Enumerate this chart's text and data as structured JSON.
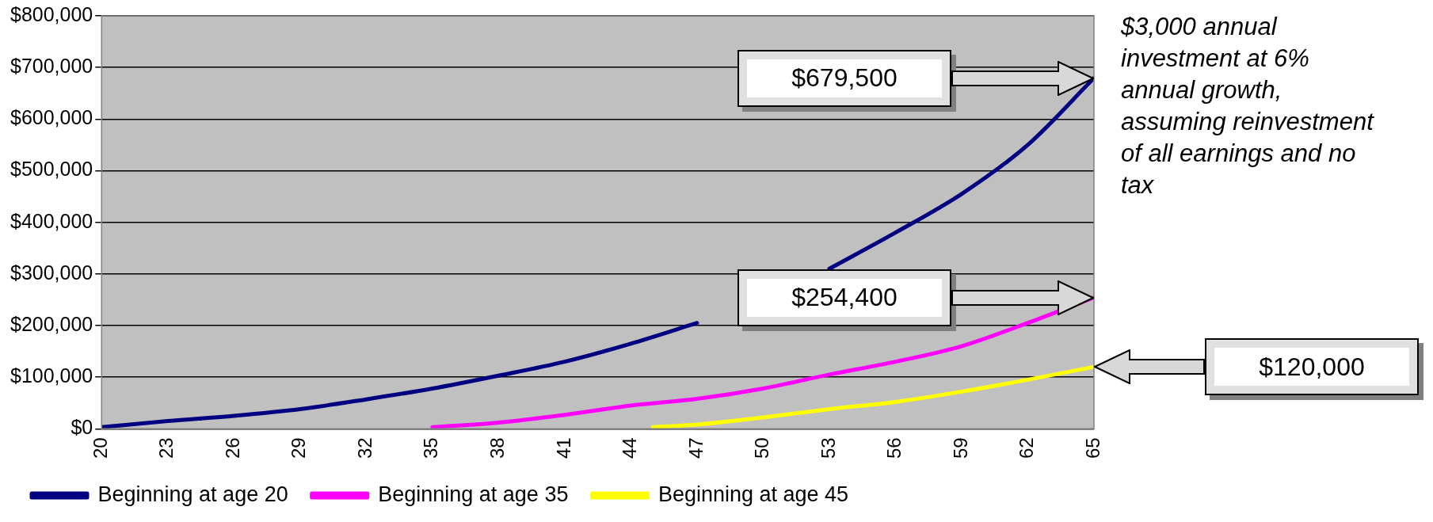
{
  "chart_data": {
    "type": "line",
    "xlim": [
      20,
      65
    ],
    "xticks": [
      20,
      23,
      26,
      29,
      32,
      35,
      38,
      41,
      44,
      47,
      50,
      53,
      56,
      59,
      62,
      65
    ],
    "ylim": [
      0,
      800000
    ],
    "yticks": [
      {
        "value": 0,
        "label": "$0"
      },
      {
        "value": 100000,
        "label": "$100,000"
      },
      {
        "value": 200000,
        "label": "$200,000"
      },
      {
        "value": 300000,
        "label": "$300,000"
      },
      {
        "value": 400000,
        "label": "$400,000"
      },
      {
        "value": 500000,
        "label": "$500,000"
      },
      {
        "value": 600000,
        "label": "$600,000"
      },
      {
        "value": 700000,
        "label": "$700,000"
      },
      {
        "value": 800000,
        "label": "$800,000"
      }
    ],
    "grid": "y",
    "legend": "bottom left",
    "marker": "none",
    "line_style": "solid",
    "series": [
      {
        "name": "Beginning at age 20",
        "color": "#000080",
        "x": [
          20,
          23,
          26,
          29,
          32,
          35,
          38,
          41,
          44,
          47,
          50,
          53,
          56,
          59,
          62,
          65
        ],
        "values": [
          3000,
          15000,
          25000,
          38000,
          57000,
          78000,
          103000,
          130000,
          165000,
          205000,
          null,
          310000,
          380000,
          455000,
          550000,
          679500
        ]
      },
      {
        "name": "Beginning at age 35",
        "color": "#ff00ff",
        "x": [
          35,
          38,
          41,
          44,
          47,
          50,
          53,
          56,
          59,
          62,
          65
        ],
        "values": [
          3000,
          12000,
          27000,
          45000,
          58000,
          78000,
          105000,
          130000,
          160000,
          205000,
          254400
        ]
      },
      {
        "name": "Beginning at age 45",
        "color": "#ffff00",
        "x": [
          45,
          47,
          50,
          53,
          56,
          59,
          62,
          65
        ],
        "values": [
          3000,
          8000,
          22000,
          38000,
          52000,
          72000,
          95000,
          120000
        ]
      }
    ],
    "annotations": [
      "$679,500",
      "$254,400",
      "$120,000",
      "$3,000 annual investment at 6% annual growth, assuming reinvestment of all earnings and no tax"
    ]
  }
}
